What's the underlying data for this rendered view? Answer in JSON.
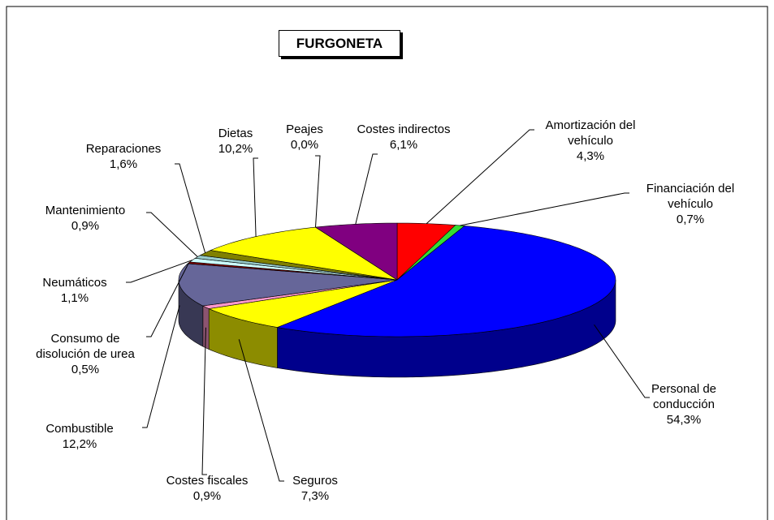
{
  "chart_data": {
    "type": "pie3d",
    "title": "FURGONETA",
    "categories": [
      "Amortización del vehículo",
      "Financiación del vehículo",
      "Personal de conducción",
      "Seguros",
      "Costes fiscales",
      "Combustible",
      "Consumo de disolución de urea",
      "Neumáticos",
      "Mantenimiento",
      "Reparaciones",
      "Dietas",
      "Peajes",
      "Costes indirectos"
    ],
    "values": [
      4.3,
      0.7,
      54.3,
      7.3,
      0.9,
      12.2,
      0.5,
      1.1,
      0.9,
      1.6,
      10.2,
      0.0,
      6.1
    ],
    "value_labels": [
      "4,3%",
      "0,7%",
      "54,3%",
      "7,3%",
      "0,9%",
      "12,2%",
      "0,5%",
      "1,1%",
      "0,9%",
      "1,6%",
      "10,2%",
      "0,0%",
      "6,1%"
    ],
    "colors": [
      "#ff0000",
      "#33dd33",
      "#0000ff",
      "#ffff00",
      "#ff99cc",
      "#666699",
      "#800000",
      "#ccffff",
      "#99cccc",
      "#808000",
      "#ffff00",
      "#ffffff",
      "#800080"
    ]
  }
}
